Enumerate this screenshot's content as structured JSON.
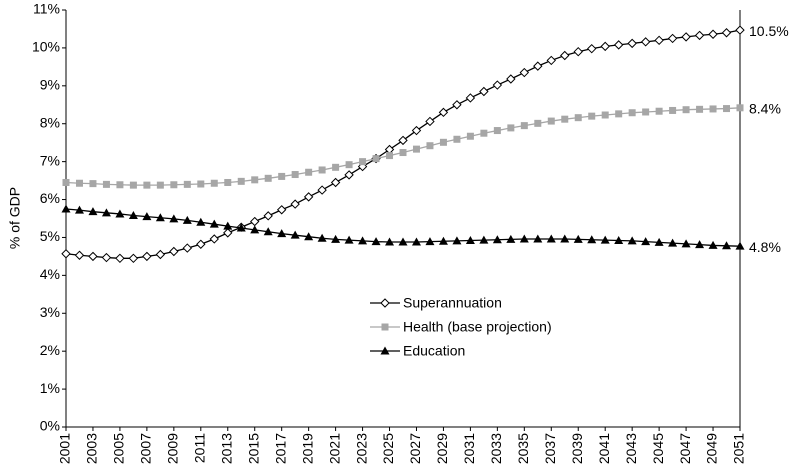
{
  "chart_data": {
    "type": "line",
    "y_label": "% of GDP",
    "x": [
      2001,
      2002,
      2003,
      2004,
      2005,
      2006,
      2007,
      2008,
      2009,
      2010,
      2011,
      2012,
      2013,
      2014,
      2015,
      2016,
      2017,
      2018,
      2019,
      2020,
      2021,
      2022,
      2023,
      2024,
      2025,
      2026,
      2027,
      2028,
      2029,
      2030,
      2031,
      2032,
      2033,
      2034,
      2035,
      2036,
      2037,
      2038,
      2039,
      2040,
      2041,
      2042,
      2043,
      2044,
      2045,
      2046,
      2047,
      2048,
      2049,
      2050,
      2051
    ],
    "xlim": [
      2001,
      2051
    ],
    "xticks": [
      2001,
      2003,
      2005,
      2007,
      2009,
      2011,
      2013,
      2015,
      2017,
      2019,
      2021,
      2023,
      2025,
      2027,
      2029,
      2031,
      2033,
      2035,
      2037,
      2039,
      2041,
      2043,
      2045,
      2047,
      2049,
      2051
    ],
    "ylim": [
      0,
      11
    ],
    "yticks": [
      {
        "value": 0,
        "label": "0%"
      },
      {
        "value": 1,
        "label": "1%"
      },
      {
        "value": 2,
        "label": "2%"
      },
      {
        "value": 3,
        "label": "3%"
      },
      {
        "value": 4,
        "label": "4%"
      },
      {
        "value": 5,
        "label": "5%"
      },
      {
        "value": 6,
        "label": "6%"
      },
      {
        "value": 7,
        "label": "7%"
      },
      {
        "value": 8,
        "label": "8%"
      },
      {
        "value": 9,
        "label": "9%"
      },
      {
        "value": 10,
        "label": "10%"
      },
      {
        "value": 11,
        "label": "11%"
      }
    ],
    "grid": false,
    "legend_position": "center",
    "series": [
      {
        "name": "Superannuation",
        "color": "#000000",
        "marker": "diamond-open",
        "values": [
          4.57,
          4.53,
          4.5,
          4.47,
          4.45,
          4.45,
          4.5,
          4.55,
          4.63,
          4.72,
          4.82,
          4.96,
          5.12,
          5.27,
          5.42,
          5.57,
          5.73,
          5.88,
          6.07,
          6.25,
          6.45,
          6.65,
          6.87,
          7.08,
          7.32,
          7.56,
          7.82,
          8.06,
          8.3,
          8.5,
          8.68,
          8.85,
          9.02,
          9.18,
          9.35,
          9.52,
          9.67,
          9.8,
          9.9,
          9.98,
          10.04,
          10.08,
          10.12,
          10.16,
          10.2,
          10.25,
          10.29,
          10.33,
          10.36,
          10.4,
          10.47
        ],
        "value_labels": [
          null,
          null,
          null,
          null,
          null,
          null,
          null,
          null,
          null,
          null,
          null,
          null,
          null,
          null,
          null,
          null,
          null,
          null,
          null,
          null,
          null,
          null,
          null,
          null,
          null,
          null,
          null,
          null,
          null,
          null,
          null,
          null,
          null,
          null,
          null,
          null,
          null,
          null,
          null,
          null,
          null,
          null,
          null,
          null,
          null,
          null,
          null,
          null,
          null,
          null,
          "10.5%"
        ]
      },
      {
        "name": "Health (base projection)",
        "color": "#a6a6a6",
        "marker": "square",
        "values": [
          6.45,
          6.43,
          6.42,
          6.4,
          6.39,
          6.38,
          6.38,
          6.38,
          6.39,
          6.4,
          6.41,
          6.43,
          6.45,
          6.48,
          6.52,
          6.56,
          6.61,
          6.66,
          6.72,
          6.78,
          6.85,
          6.92,
          7.0,
          7.08,
          7.16,
          7.24,
          7.33,
          7.42,
          7.51,
          7.59,
          7.67,
          7.75,
          7.82,
          7.89,
          7.95,
          8.01,
          8.07,
          8.12,
          8.16,
          8.2,
          8.23,
          8.26,
          8.29,
          8.31,
          8.33,
          8.35,
          8.37,
          8.38,
          8.39,
          8.4,
          8.42
        ],
        "value_labels": [
          null,
          null,
          null,
          null,
          null,
          null,
          null,
          null,
          null,
          null,
          null,
          null,
          null,
          null,
          null,
          null,
          null,
          null,
          null,
          null,
          null,
          null,
          null,
          null,
          null,
          null,
          null,
          null,
          null,
          null,
          null,
          null,
          null,
          null,
          null,
          null,
          null,
          null,
          null,
          null,
          null,
          null,
          null,
          null,
          null,
          null,
          null,
          null,
          null,
          null,
          "8.4%"
        ]
      },
      {
        "name": "Education",
        "color": "#000000",
        "marker": "triangle",
        "values": [
          5.75,
          5.72,
          5.68,
          5.65,
          5.62,
          5.58,
          5.55,
          5.52,
          5.49,
          5.45,
          5.4,
          5.35,
          5.3,
          5.25,
          5.2,
          5.15,
          5.1,
          5.06,
          5.02,
          4.98,
          4.95,
          4.93,
          4.91,
          4.89,
          4.88,
          4.88,
          4.88,
          4.89,
          4.9,
          4.91,
          4.92,
          4.93,
          4.94,
          4.95,
          4.96,
          4.96,
          4.96,
          4.96,
          4.95,
          4.94,
          4.93,
          4.92,
          4.91,
          4.89,
          4.87,
          4.85,
          4.83,
          4.81,
          4.79,
          4.78,
          4.77
        ],
        "value_labels": [
          null,
          null,
          null,
          null,
          null,
          null,
          null,
          null,
          null,
          null,
          null,
          null,
          null,
          null,
          null,
          null,
          null,
          null,
          null,
          null,
          null,
          null,
          null,
          null,
          null,
          null,
          null,
          null,
          null,
          null,
          null,
          null,
          null,
          null,
          null,
          null,
          null,
          null,
          null,
          null,
          null,
          null,
          null,
          null,
          null,
          null,
          null,
          null,
          null,
          null,
          "4.8%"
        ]
      }
    ]
  }
}
